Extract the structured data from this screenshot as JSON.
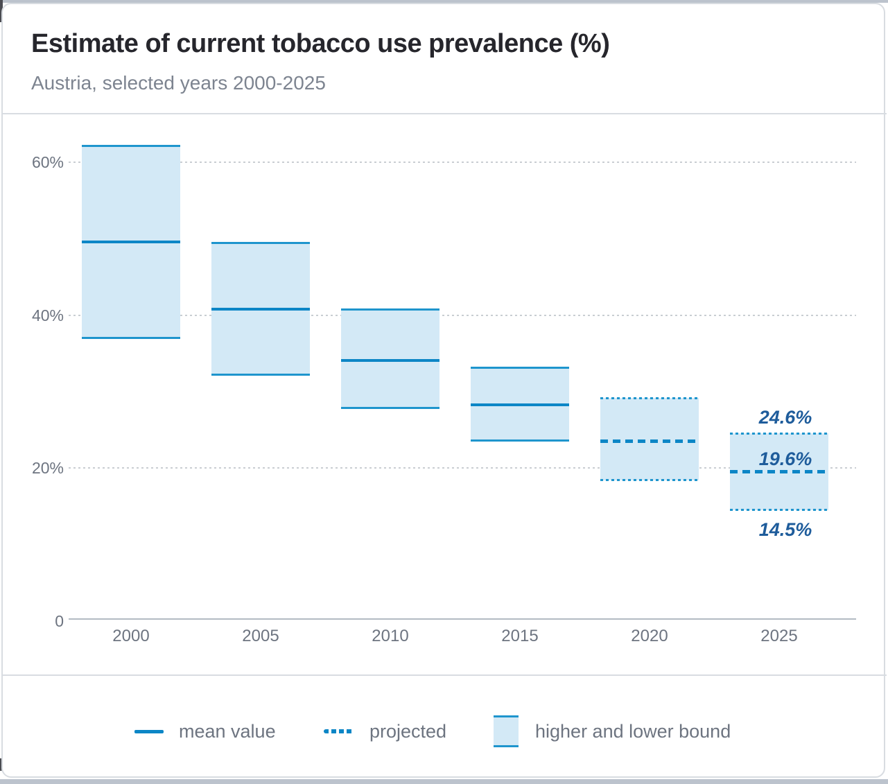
{
  "chart_data": {
    "type": "bar",
    "title": "Estimate of current tobacco use prevalence (%)",
    "subtitle": "Austria, selected years 2000-2025",
    "categories": [
      "2000",
      "2005",
      "2010",
      "2015",
      "2020",
      "2025"
    ],
    "series": [
      {
        "name": "higher bound",
        "values": [
          62.2,
          49.5,
          40.8,
          33.2,
          29.2,
          24.6
        ]
      },
      {
        "name": "mean value",
        "values": [
          49.6,
          40.8,
          34.1,
          28.3,
          23.6,
          19.6
        ]
      },
      {
        "name": "lower bound",
        "values": [
          37.0,
          32.2,
          27.8,
          23.6,
          18.4,
          14.5
        ]
      }
    ],
    "projected_categories": [
      "2020",
      "2025"
    ],
    "annotations": [
      {
        "category": "2025",
        "labels": [
          "24.6%",
          "19.6%",
          "14.5%"
        ]
      }
    ],
    "ylim": [
      0,
      65
    ],
    "y_ticks": [
      {
        "value": 60,
        "label": "60%"
      },
      {
        "value": 40,
        "label": "40%"
      },
      {
        "value": 20,
        "label": "20%"
      },
      {
        "value": 0,
        "label": "0"
      }
    ],
    "grid": "horizontal-dotted",
    "legend_position": "bottom"
  },
  "legend": {
    "items": [
      {
        "label": "mean value",
        "swatch": "solid-line"
      },
      {
        "label": "projected",
        "swatch": "dotted-line"
      },
      {
        "label": "higher and lower bound",
        "swatch": "box"
      }
    ]
  },
  "colors": {
    "bar_fill": "#d3e9f6",
    "bar_border": "#1e95cd",
    "mean_line": "#0c86c6",
    "annotation_text": "#1e5c9b",
    "axis_text": "#6d7480",
    "title_text": "#26262c",
    "subtitle_text": "#7d8490",
    "gridline": "#c9cdd2",
    "frame": "#bcc3cd"
  }
}
